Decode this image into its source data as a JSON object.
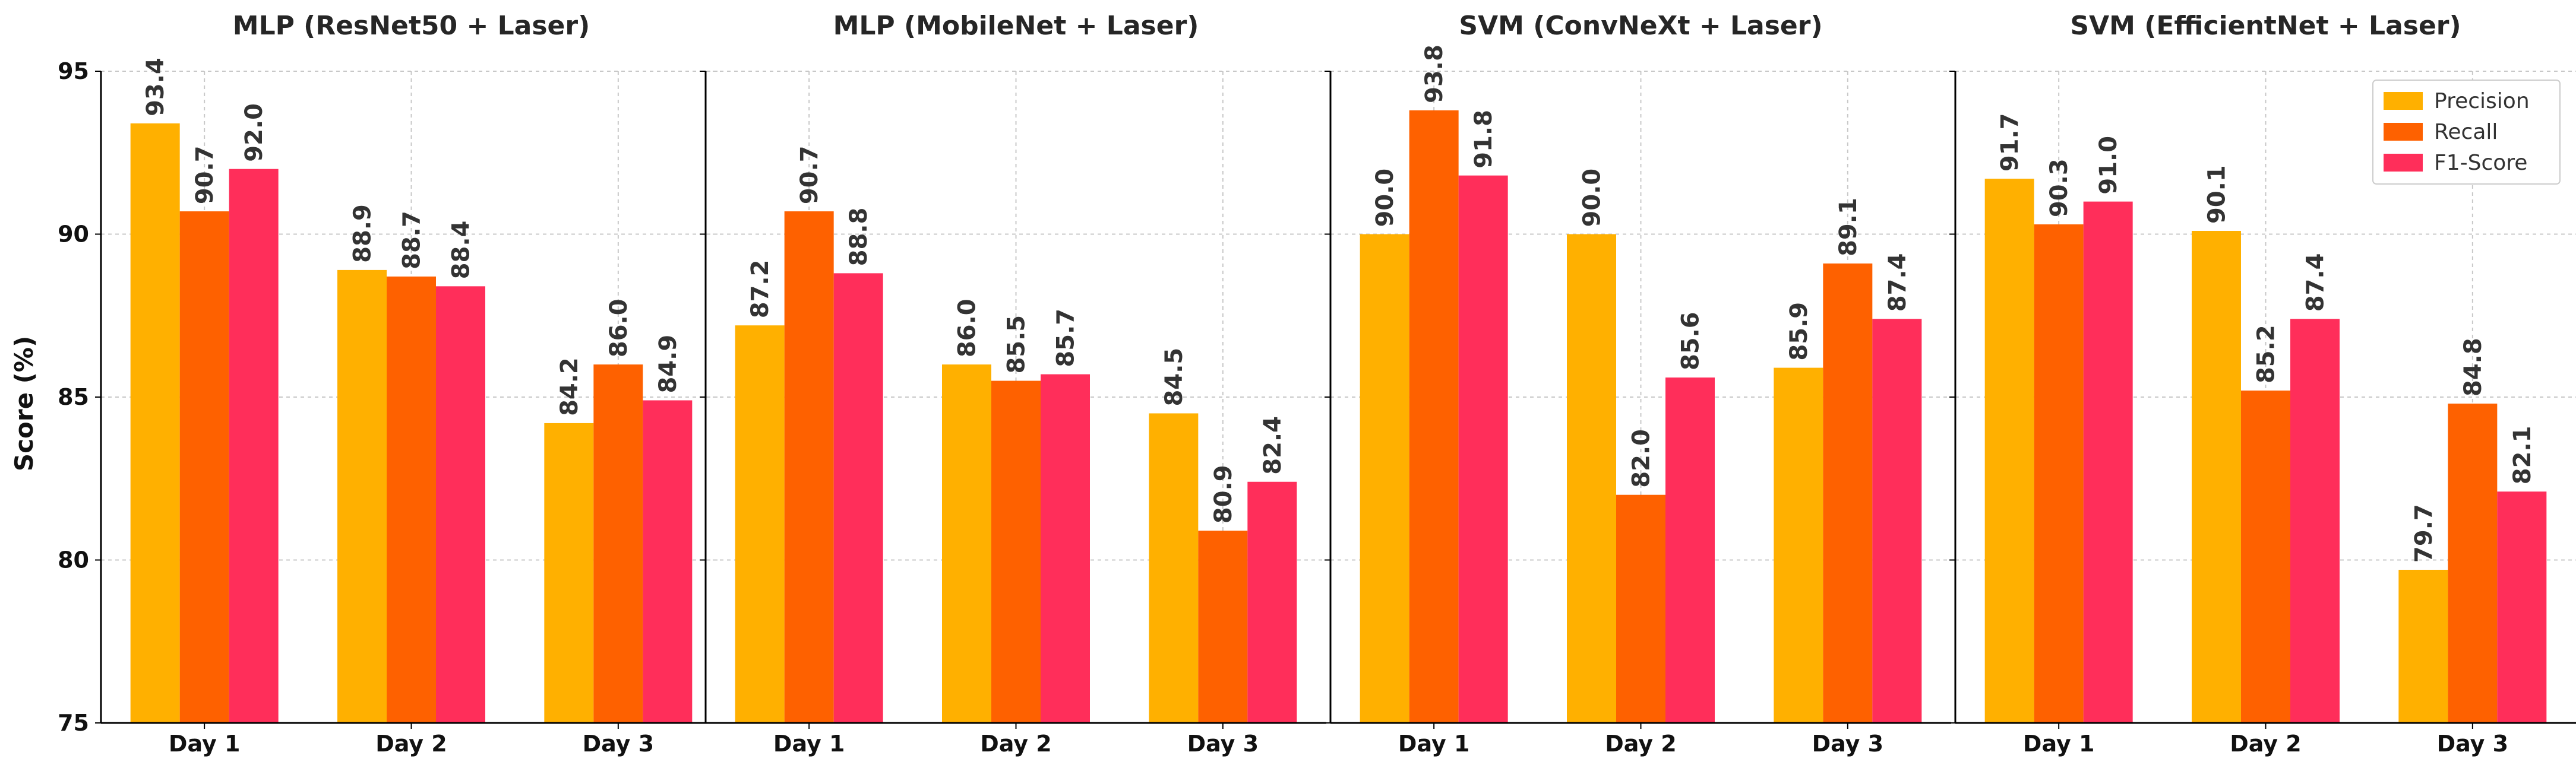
{
  "chart_data": {
    "type": "bar",
    "ylabel": "Score (%)",
    "ylim": [
      75,
      95
    ],
    "yticks": [
      75,
      80,
      85,
      90,
      95
    ],
    "grid": true,
    "legend_position": "top-right",
    "categories": [
      "Day 1",
      "Day 2",
      "Day 3"
    ],
    "series_names": [
      "Precision",
      "Recall",
      "F1-Score"
    ],
    "colors": [
      "#FFB000",
      "#FE6100",
      "#FF2E5A"
    ],
    "panels": [
      {
        "title": "MLP (ResNet50 + Laser)",
        "series": [
          {
            "name": "Precision",
            "values": [
              93.4,
              88.9,
              84.2
            ]
          },
          {
            "name": "Recall",
            "values": [
              90.7,
              88.7,
              86.0
            ]
          },
          {
            "name": "F1-Score",
            "values": [
              92.0,
              88.4,
              84.9
            ]
          }
        ]
      },
      {
        "title": "MLP (MobileNet + Laser)",
        "series": [
          {
            "name": "Precision",
            "values": [
              87.2,
              86.0,
              84.5
            ]
          },
          {
            "name": "Recall",
            "values": [
              90.7,
              85.5,
              80.9
            ]
          },
          {
            "name": "F1-Score",
            "values": [
              88.8,
              85.7,
              82.4
            ]
          }
        ]
      },
      {
        "title": "SVM (ConvNeXt + Laser)",
        "series": [
          {
            "name": "Precision",
            "values": [
              90.0,
              90.0,
              85.9
            ]
          },
          {
            "name": "Recall",
            "values": [
              93.8,
              82.0,
              89.1
            ]
          },
          {
            "name": "F1-Score",
            "values": [
              91.8,
              85.6,
              87.4
            ]
          }
        ]
      },
      {
        "title": "SVM (EfficientNet + Laser)",
        "series": [
          {
            "name": "Precision",
            "values": [
              91.7,
              90.1,
              79.7
            ]
          },
          {
            "name": "Recall",
            "values": [
              90.3,
              85.2,
              84.8
            ]
          },
          {
            "name": "F1-Score",
            "values": [
              91.0,
              87.4,
              82.1
            ]
          }
        ]
      }
    ]
  }
}
